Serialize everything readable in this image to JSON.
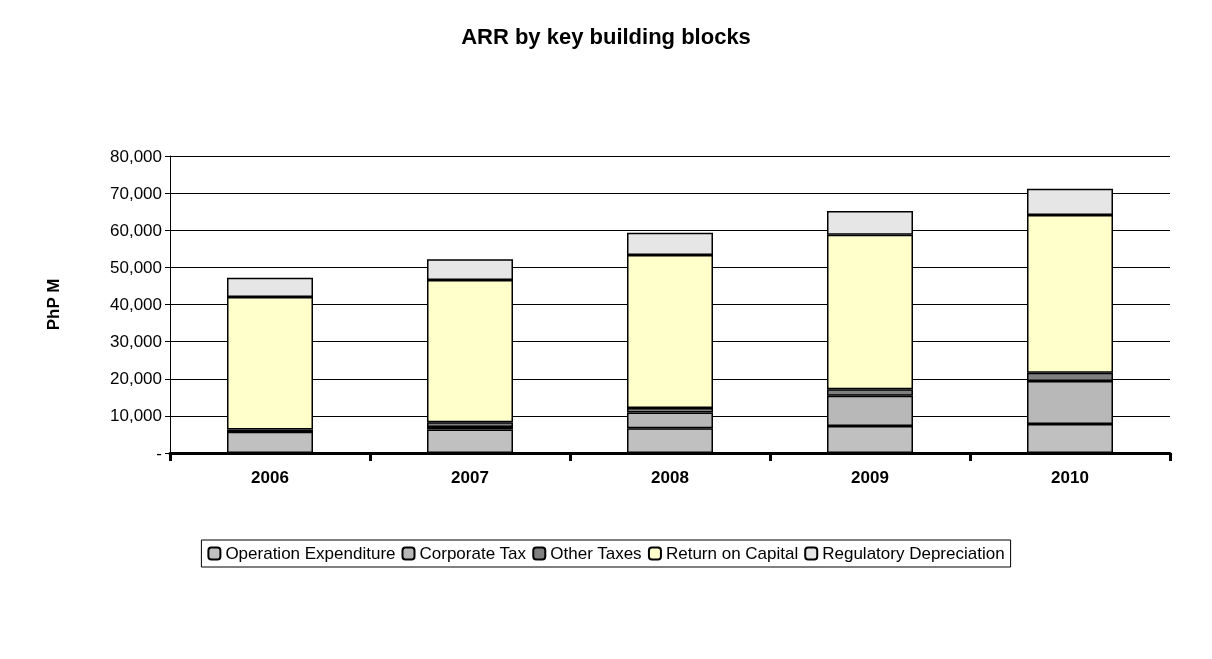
{
  "chart_data": {
    "type": "bar",
    "title": "ARR by key building blocks",
    "ylabel": "PhP M",
    "stacked": true,
    "categories": [
      "2006",
      "2007",
      "2008",
      "2009",
      "2010"
    ],
    "series": [
      {
        "name": "Operation Expenditure",
        "color": "#c0c0c0",
        "values": [
          5700,
          6300,
          6700,
          7300,
          7800
        ]
      },
      {
        "name": "Corporate Tax",
        "color": "#b8b8b8",
        "values": [
          0,
          700,
          4200,
          8100,
          11600
        ]
      },
      {
        "name": "Other Taxes",
        "color": "#808080",
        "values": [
          600,
          1300,
          1200,
          1800,
          2200
        ]
      },
      {
        "name": "Return on Capital",
        "color": "#ffffcc",
        "values": [
          35700,
          38300,
          41200,
          41600,
          42500
        ]
      },
      {
        "name": "Regulatory Depreciation",
        "color": "#e6e6e6",
        "values": [
          5200,
          5600,
          6000,
          6400,
          7100
        ]
      }
    ],
    "ylim": [
      0,
      80000
    ],
    "yticks": [
      {
        "value": 0,
        "label": "-"
      },
      {
        "value": 10000,
        "label": "10,000"
      },
      {
        "value": 20000,
        "label": "20,000"
      },
      {
        "value": 30000,
        "label": "30,000"
      },
      {
        "value": 40000,
        "label": "40,000"
      },
      {
        "value": 50000,
        "label": "50,000"
      },
      {
        "value": 60000,
        "label": "60,000"
      },
      {
        "value": 70000,
        "label": "70,000"
      },
      {
        "value": 80000,
        "label": "80,000"
      }
    ],
    "grid": "y",
    "legend": "bottom"
  }
}
